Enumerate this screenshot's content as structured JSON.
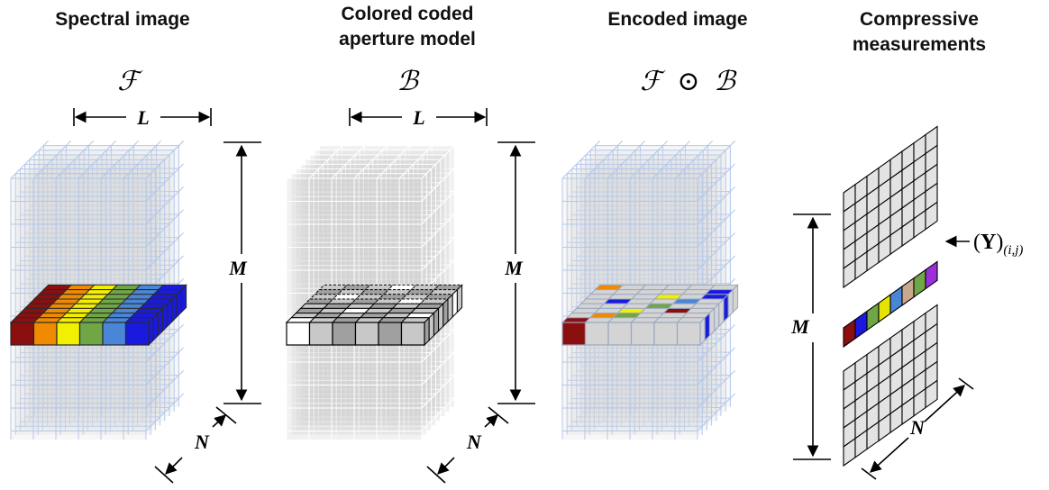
{
  "titles": {
    "spectral": "Spectral image",
    "coded_line1": "Colored coded",
    "coded_line2": "aperture model",
    "encoded": "Encoded image",
    "compressive_line1": "Compressive",
    "compressive_line2": "measurements"
  },
  "symbols": {
    "spectral": "ℱ",
    "coded": "ℬ",
    "encoded_left": "ℱ",
    "encoded_op": "⊙",
    "encoded_right": "ℬ"
  },
  "dimension_labels": {
    "L": "L",
    "M": "M",
    "N": "N"
  },
  "measurement_label": {
    "open": "(",
    "Y": "Y",
    "close": ")",
    "subscript": "(i,j)"
  },
  "colors": {
    "grid_line": "#b4c8ea",
    "volume_fill": "#d6d6d6",
    "spectral_bands": [
      "#8b0f0f",
      "#f08a00",
      "#f2ef00",
      "#6fa646",
      "#4a86d8",
      "#1a1adf"
    ],
    "measurement_bands": [
      "#8b0f0f",
      "#1a1adf",
      "#6fa646",
      "#e4e400",
      "#4a86d8",
      "#c9a890",
      "#6fa646",
      "#9b30d9"
    ],
    "coded_grays": [
      "#ffffff",
      "#c8c8c8",
      "#a0a0a0",
      "#c8c8c8",
      "#a0a0a0",
      "#c8c8c8",
      "#a0a0a0",
      "#c8c8c8"
    ]
  }
}
